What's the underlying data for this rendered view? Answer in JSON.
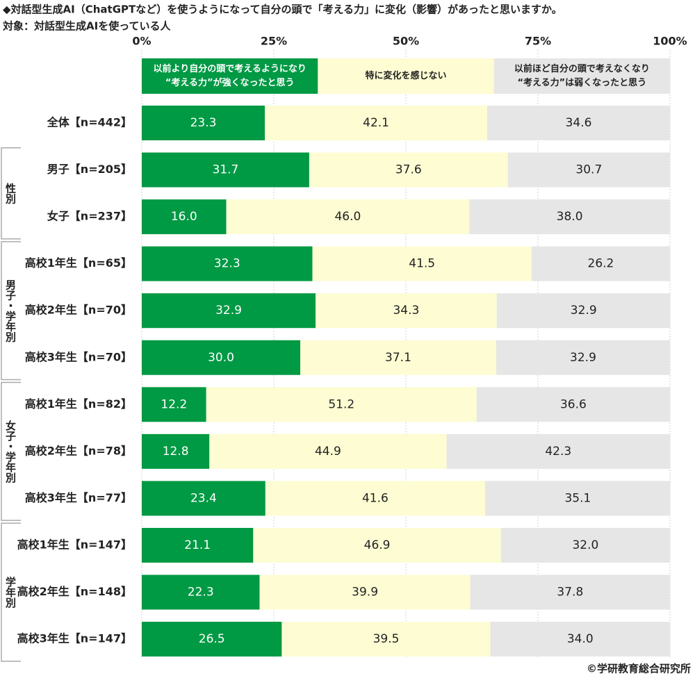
{
  "chart_data": {
    "type": "stacked-bar-horizontal",
    "title": "◆対話型生成AI（ChatGPTなど）を使うようになって自分の頭で「考える力」に変化（影響）があったと思いますか。",
    "subtitle": "対象：対話型生成AIを使っている人",
    "source": "©学研教育総合研究所",
    "xlim": [
      0,
      100
    ],
    "xticks": [
      {
        "value": 0,
        "label": "0%"
      },
      {
        "value": 25,
        "label": "25%"
      },
      {
        "value": 50,
        "label": "50%"
      },
      {
        "value": 75,
        "label": "75%"
      },
      {
        "value": 100,
        "label": "100%"
      }
    ],
    "categories": [
      "全体【n=442】",
      "男子【n=205】",
      "女子【n=237】",
      "高校1年生【n=65】",
      "高校2年生【n=70】",
      "高校3年生【n=70】",
      "高校1年生【n=82】",
      "高校2年生【n=78】",
      "高校3年生【n=77】",
      "高校1年生【n=147】",
      "高校2年生【n=148】",
      "高校3年生【n=147】"
    ],
    "groups": [
      {
        "label": "性別",
        "count": 2
      },
      {
        "label": "男子・学年別",
        "count": 3
      },
      {
        "label": "女子・学年別",
        "count": 3
      },
      {
        "label": "学年別",
        "count": 3
      }
    ],
    "series": [
      {
        "name": [
          "以前より自分の頭で考えるようになり",
          "“考える力”が強くなったと思う"
        ],
        "color": "#009944",
        "label_color": "#ffffff",
        "values": [
          23.3,
          31.7,
          16.0,
          32.3,
          32.9,
          30.0,
          12.2,
          12.8,
          23.4,
          21.1,
          22.3,
          26.5
        ],
        "value_labels": [
          "23.3",
          "31.7",
          "16.0",
          "32.3",
          "32.9",
          "30.0",
          "12.2",
          "12.8",
          "23.4",
          "21.1",
          "22.3",
          "26.5"
        ]
      },
      {
        "name": [
          "特に変化を感じない"
        ],
        "color": "#fdfcd3",
        "label_color": "#222222",
        "values": [
          42.1,
          37.6,
          46.0,
          41.5,
          34.3,
          37.1,
          51.2,
          44.9,
          41.6,
          46.9,
          39.9,
          39.5
        ],
        "value_labels": [
          "42.1",
          "37.6",
          "46.0",
          "41.5",
          "34.3",
          "37.1",
          "51.2",
          "44.9",
          "41.6",
          "46.9",
          "39.9",
          "39.5"
        ]
      },
      {
        "name": [
          "以前ほど自分の頭で考えなくなり",
          "“考える力”は弱くなったと思う"
        ],
        "color": "#e6e6e6",
        "label_color": "#222222",
        "values": [
          34.6,
          30.7,
          38.0,
          26.2,
          32.9,
          32.9,
          36.6,
          42.3,
          35.1,
          32.0,
          37.8,
          34.0
        ],
        "value_labels": [
          "34.6",
          "30.7",
          "38.0",
          "26.2",
          "32.9",
          "32.9",
          "36.6",
          "42.3",
          "35.1",
          "32.0",
          "37.8",
          "34.0"
        ]
      }
    ]
  }
}
